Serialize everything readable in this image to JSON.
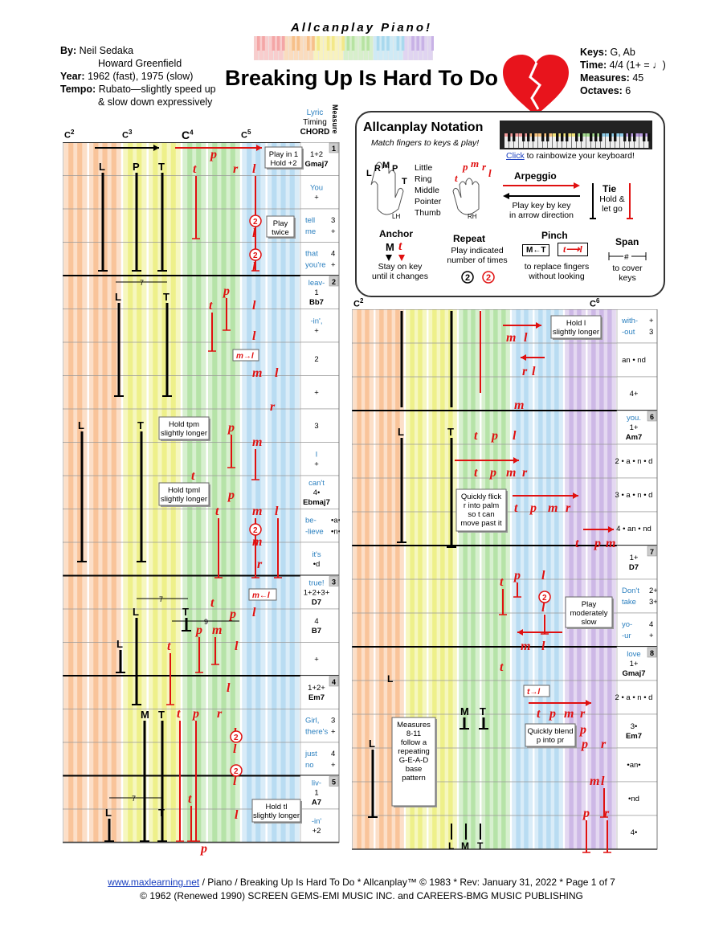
{
  "header": {
    "brand": "Allcanplay Piano!",
    "title": "Breaking Up Is Hard To Do",
    "by_label": "By:",
    "composer1": "Neil Sedaka",
    "composer2": "Howard Greenfield",
    "year_label": "Year:",
    "year": "1962 (fast), 1975 (slow)",
    "tempo_label": "Tempo:",
    "tempo1": "Rubato—slightly speed up",
    "tempo2": "& slow down expressively",
    "keys_label": "Keys:",
    "keys": "G, Ab",
    "time_label": "Time:",
    "time": "4/4 (1+ = ♩)",
    "measures_label": "Measures:",
    "measures": "45",
    "octaves_label": "Octaves:",
    "octaves": "6"
  },
  "columns": {
    "lyric_timing": "Lyric",
    "timing": "Timing",
    "chord": "CHORD",
    "measure": "Measure"
  },
  "octaves_left": [
    "C2",
    "C3",
    "C4",
    "C5"
  ],
  "octaves_right": [
    "C2",
    "C6"
  ],
  "notation": {
    "title": "Allcanplay Notation",
    "subtitle": "Match fingers to keys & play!",
    "click": "Click",
    "rainbow": " to rainbowize your keyboard!",
    "fingers": [
      "Little",
      "Ring",
      "Middle",
      "Pointer",
      "Thumb"
    ],
    "lh": "LH",
    "rh": "RH",
    "arpeggio": "Arpeggio",
    "arpeggio_desc1": "Play key by key",
    "arpeggio_desc2": "in arrow direction",
    "tie": "Tie",
    "tie_desc1": "Hold &",
    "tie_desc2": "let go",
    "anchor": "Anchor",
    "anchor_desc1": "Stay on key",
    "anchor_desc2": "until it changes",
    "repeat": "Repeat",
    "repeat_desc1": "Play indicated",
    "repeat_desc2": "number of times",
    "pinch": "Pinch",
    "pinch_desc1": "to replace fingers",
    "pinch_desc2": "without looking",
    "span": "Span",
    "span_desc1": "to cover",
    "span_desc2": "keys"
  },
  "left_rows": [
    {
      "lyric": "",
      "timing": "1+2",
      "chord": "Gmaj7",
      "measure": "1"
    },
    {
      "lyric": "You",
      "timing": "+",
      "chord": "",
      "measure": ""
    },
    {
      "lyric": "tell",
      "timing": "3",
      "lyric2": "me",
      "timing2": "+",
      "chord": "",
      "measure": ""
    },
    {
      "lyric": "that",
      "timing": "4",
      "lyric2": "you're",
      "timing2": "+",
      "chord": "",
      "measure": ""
    },
    {
      "lyric": "leav-",
      "timing": "1",
      "chord": "Bb7",
      "measure": "2"
    },
    {
      "lyric": "-in',",
      "timing": "+",
      "chord": "",
      "measure": ""
    },
    {
      "lyric": "",
      "timing": "2",
      "chord": "",
      "measure": ""
    },
    {
      "lyric": "",
      "timing": "+",
      "chord": "",
      "measure": ""
    },
    {
      "lyric": "",
      "timing": "3",
      "chord": "",
      "measure": ""
    },
    {
      "lyric": "I",
      "timing": "+",
      "chord": "",
      "measure": ""
    },
    {
      "lyric": "can't",
      "timing": "4•",
      "chord": "Ebmaj7",
      "measure": ""
    },
    {
      "lyric": "be-",
      "timing": "•a•",
      "lyric2": "-lieve",
      "timing2": "•n•",
      "chord": "",
      "measure": ""
    },
    {
      "lyric": "it's",
      "timing": "•d",
      "chord": "",
      "measure": ""
    },
    {
      "lyric": "true!",
      "timing": "1+2+3+",
      "chord": "D7",
      "measure": "3"
    },
    {
      "lyric": "",
      "timing": "4",
      "chord": "B7",
      "measure": ""
    },
    {
      "lyric": "",
      "timing": "+",
      "chord": "",
      "measure": ""
    },
    {
      "lyric": "",
      "timing": "1+2+",
      "chord": "Em7",
      "measure": "4"
    },
    {
      "lyric": "Girl,",
      "timing": "3",
      "lyric2": "there's",
      "timing2": "+",
      "chord": "",
      "measure": ""
    },
    {
      "lyric": "just",
      "timing": "4",
      "lyric2": "no",
      "timing2": "+",
      "chord": "",
      "measure": ""
    },
    {
      "lyric": "liv-",
      "timing": "1",
      "chord": "A7",
      "measure": "5"
    },
    {
      "lyric": "-in'",
      "timing": "+2",
      "chord": "",
      "measure": ""
    }
  ],
  "right_rows": [
    {
      "lyric": "with-",
      "timing": "+",
      "lyric2": "-out",
      "timing2": "3",
      "chord": "",
      "measure": ""
    },
    {
      "lyric": "",
      "timing": "an • nd",
      "chord": "",
      "measure": ""
    },
    {
      "lyric": "",
      "timing": "4+",
      "chord": "",
      "measure": ""
    },
    {
      "lyric": "you.",
      "timing": "1+",
      "chord": "Am7",
      "measure": "6"
    },
    {
      "lyric": "",
      "timing": "2 • a • n • d",
      "chord": "",
      "measure": ""
    },
    {
      "lyric": "",
      "timing": "3 • a • n • d",
      "chord": "",
      "measure": ""
    },
    {
      "lyric": "",
      "timing": "4 • an • nd",
      "chord": "",
      "measure": ""
    },
    {
      "lyric": "",
      "timing": "1+",
      "chord": "D7",
      "measure": "7"
    },
    {
      "lyric": "Don't",
      "timing": "2+",
      "lyric2": "take",
      "timing2": "3+",
      "chord": "",
      "measure": ""
    },
    {
      "lyric": "yo-",
      "timing": "4",
      "lyric2": "-ur",
      "timing2": "+",
      "chord": "",
      "measure": ""
    },
    {
      "lyric": "love",
      "timing": "1+",
      "chord": "Gmaj7",
      "measure": "8"
    },
    {
      "lyric": "",
      "timing": "2 • a • n • d",
      "chord": "",
      "measure": ""
    },
    {
      "lyric": "",
      "timing": "3•",
      "chord": "Em7",
      "measure": ""
    },
    {
      "lyric": "",
      "timing": "•an•",
      "chord": "",
      "measure": ""
    },
    {
      "lyric": "",
      "timing": "•nd",
      "chord": "",
      "measure": ""
    },
    {
      "lyric": "",
      "timing": "4•",
      "chord": "",
      "measure": ""
    }
  ],
  "annotations": {
    "play_in_1": "Play in 1",
    "hold_2": "Hold +2",
    "play_twice": "Play",
    "twice": "twice",
    "hold_tpm": "Hold tpm",
    "slightly_longer": "slightly longer",
    "hold_tpml": "Hold tpml",
    "hold_tl": "Hold tl",
    "hold_l": "Hold l",
    "quickly_flick1": "Quickly flick",
    "quickly_flick2": "r into palm",
    "quickly_flick3": "so t can",
    "quickly_flick4": "move past it",
    "play_mod1": "Play",
    "play_mod2": "moderately",
    "play_mod3": "slow",
    "quickly_blend1": "Quickly blend",
    "quickly_blend2": "p into pr",
    "measures_note1": "Measures",
    "measures_note2": "8-11",
    "measures_note3": "follow a",
    "measures_note4": "repeating",
    "measures_note5": "G-E-A-D",
    "measures_note6": "base",
    "measures_note7": "pattern",
    "span7": "7",
    "span9": "9",
    "pinch_ml": "m→l",
    "pinch_lm": "m←l",
    "pinch_tl": "t→l",
    "pinch_MT": "M←T",
    "pinch_tl2": "t⟶l"
  },
  "footer": {
    "link": "www.maxlearning.net",
    "line1": " / Piano / Breaking Up Is Hard To Do * Allcanplay™ © 1983 * Rev: January 31, 2022 * Page 1 of 7",
    "line2": "© 1962 (Renewed 1990) SCREEN GEMS-EMI MUSIC INC. and CAREERS-BMG MUSIC PUBLISHING"
  },
  "colors": {
    "orange": "#f9c49a",
    "yellow": "#eef08a",
    "green": "#b6e3a8",
    "blue": "#b9dcf2",
    "purple": "#cdb8e6",
    "finger_red": "#e01010"
  }
}
